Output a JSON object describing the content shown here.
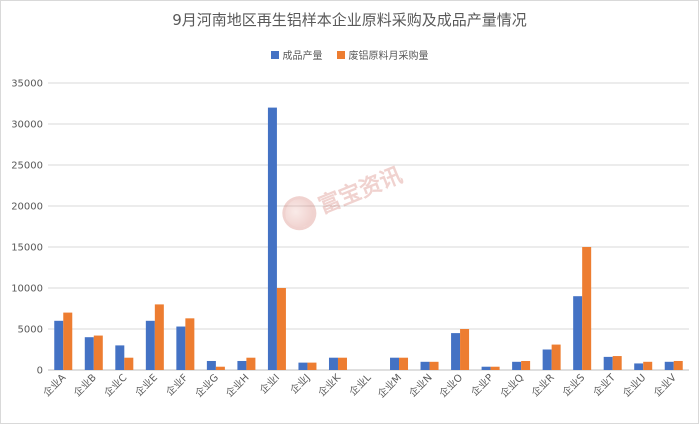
{
  "chart_data": {
    "type": "bar",
    "title": "9月河南地区再生铝样本企业原料采购及成品产量情况",
    "categories": [
      "企业A",
      "企业B",
      "企业C",
      "企业E",
      "企业F",
      "企业G",
      "企业H",
      "企业I",
      "企业J",
      "企业K",
      "企业L",
      "企业M",
      "企业N",
      "企业O",
      "企业P",
      "企业Q",
      "企业R",
      "企业S",
      "企业T",
      "企业U",
      "企业V"
    ],
    "series": [
      {
        "name": "成品产量",
        "color": "#4472c4",
        "values": [
          6000,
          4000,
          3000,
          6000,
          5300,
          1100,
          1100,
          32000,
          900,
          1500,
          0,
          1500,
          1000,
          4500,
          400,
          1000,
          2500,
          9000,
          1600,
          800,
          1000
        ]
      },
      {
        "name": "废铝原料月采购量",
        "color": "#ed7d31",
        "values": [
          7000,
          4200,
          1500,
          8000,
          6300,
          400,
          1500,
          10000,
          900,
          1500,
          0,
          1500,
          1000,
          5000,
          400,
          1100,
          3100,
          15000,
          1700,
          1000,
          1100
        ]
      }
    ],
    "ylim": [
      0,
      35000
    ],
    "yticks": [
      0,
      5000,
      10000,
      15000,
      20000,
      25000,
      30000,
      35000
    ],
    "grid": true,
    "legend_position": "top"
  },
  "watermark": {
    "text": "富宝资讯",
    "icon": "fubao-logo-icon"
  }
}
